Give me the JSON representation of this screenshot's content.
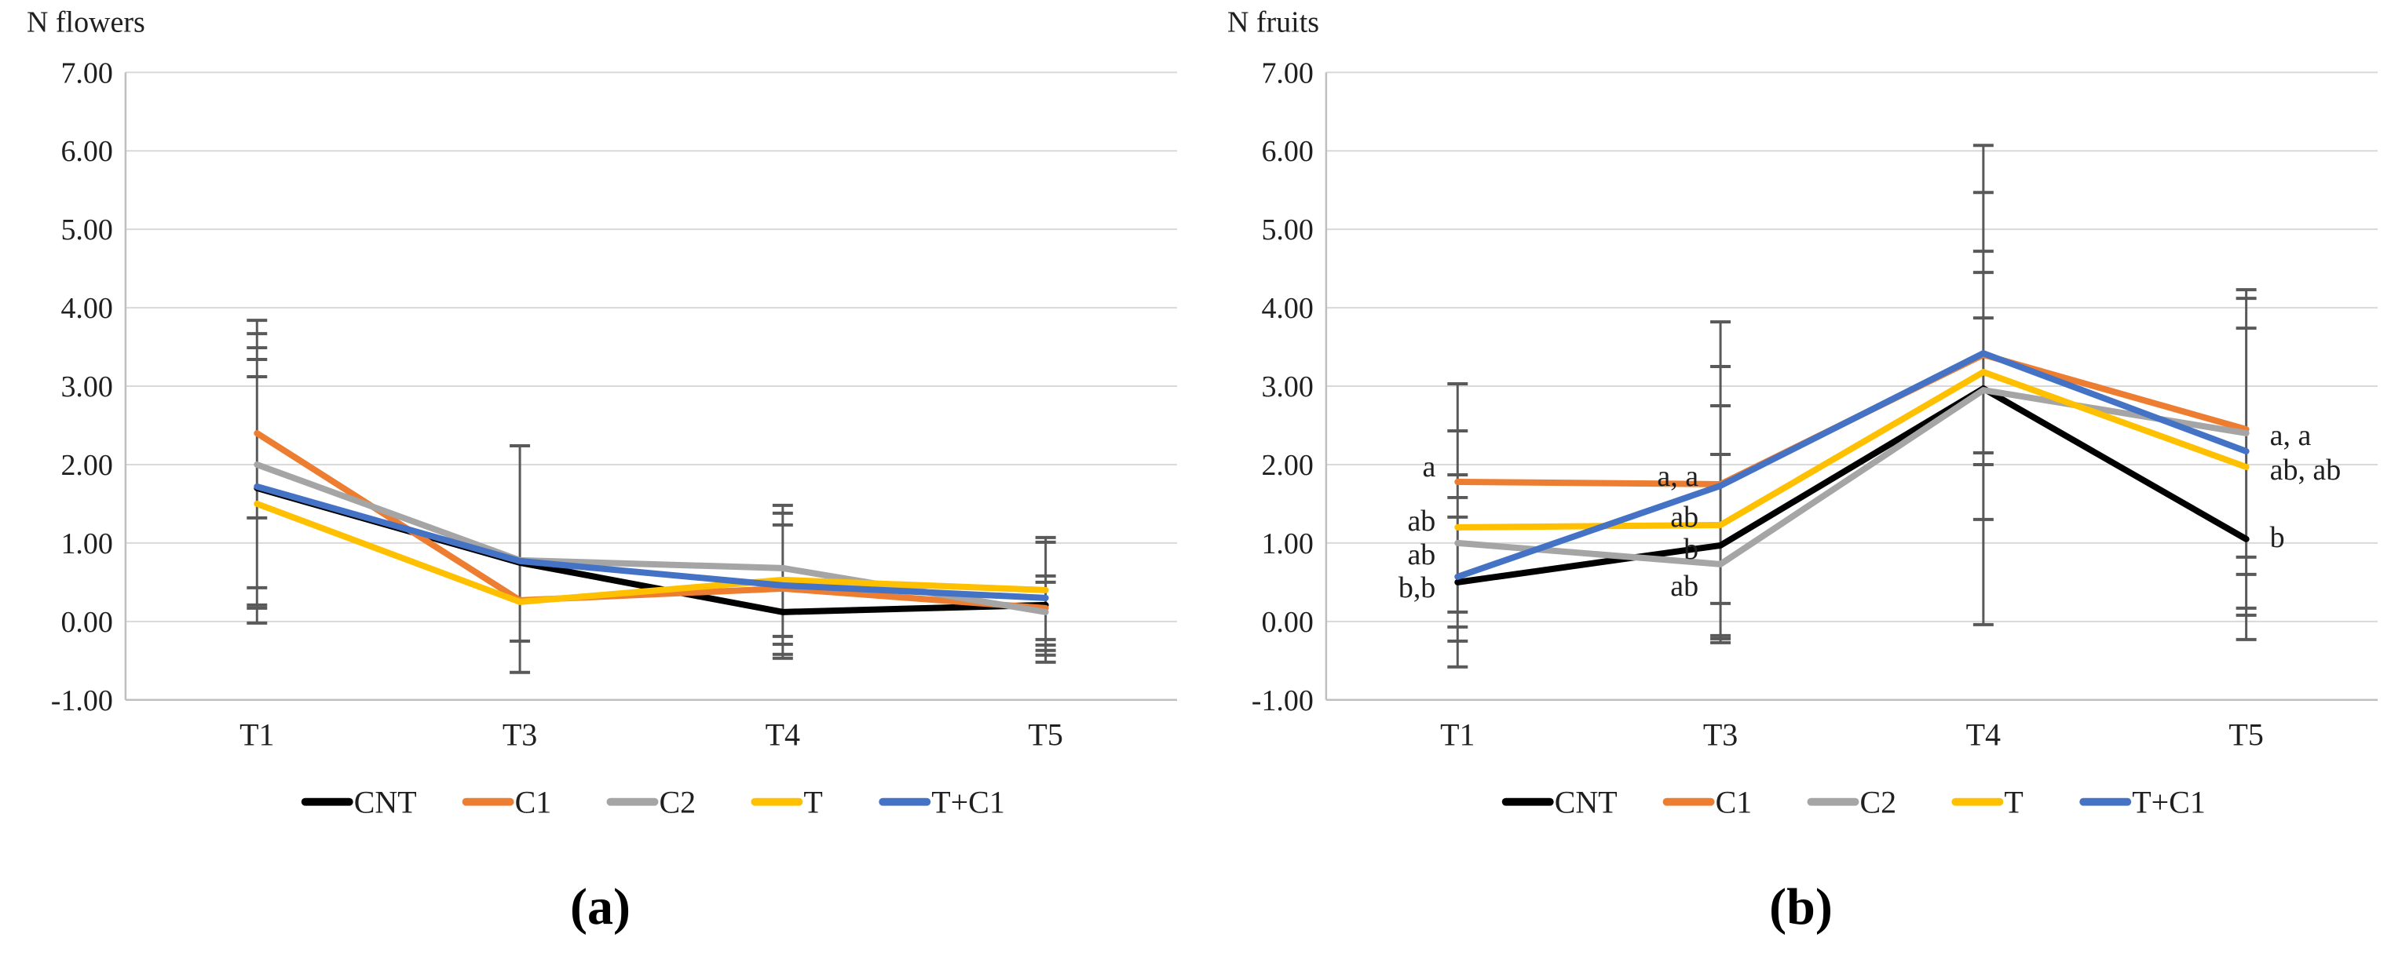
{
  "figure": {
    "panels": [
      {
        "letter": "(a)"
      },
      {
        "letter": "(b)"
      }
    ]
  },
  "palette": {
    "gridline": "#D9D9D9",
    "axis": "#BFBFBF",
    "error_bar": "#595959",
    "text": "#1f1f1f"
  },
  "chart_data": [
    {
      "id": "chart-a",
      "type": "line",
      "title": "N flowers",
      "categories": [
        "T1",
        "T3",
        "T4",
        "T5"
      ],
      "ylim": [
        -1,
        7
      ],
      "ytick_step": 1,
      "ytick_labels": [
        "7.00",
        "6.00",
        "5.00",
        "4.00",
        "3.00",
        "2.00",
        "1.00",
        "0.00",
        "-1.00"
      ],
      "grid": true,
      "legend_position": "bottom",
      "series": [
        {
          "name": "CNT",
          "color": "#000000",
          "values": [
            1.7,
            0.75,
            0.12,
            0.21
          ]
        },
        {
          "name": "C1",
          "color": "#ED7D31",
          "values": [
            2.4,
            0.27,
            0.42,
            0.17
          ]
        },
        {
          "name": "C2",
          "color": "#A5A5A5",
          "values": [
            2.0,
            0.78,
            0.68,
            0.12
          ]
        },
        {
          "name": "T",
          "color": "#FFC000",
          "values": [
            1.5,
            0.25,
            0.53,
            0.4
          ]
        },
        {
          "name": "T+C1",
          "color": "#4472C4",
          "values": [
            1.72,
            0.77,
            0.46,
            0.3
          ]
        }
      ],
      "error_bars": [
        {
          "category": "T1",
          "min": -0.02,
          "max": 3.84,
          "caps": [
            3.84,
            3.67,
            3.49,
            3.34,
            3.12,
            1.32,
            0.43,
            0.21,
            0.17,
            -0.02
          ]
        },
        {
          "category": "T3",
          "min": -0.65,
          "max": 2.24,
          "caps": [
            2.24,
            -0.25,
            -0.65
          ]
        },
        {
          "category": "T4",
          "min": -0.47,
          "max": 1.48,
          "caps": [
            1.48,
            1.38,
            1.23,
            -0.19,
            -0.29,
            -0.42,
            -0.47
          ]
        },
        {
          "category": "T5",
          "min": -0.52,
          "max": 1.07,
          "caps": [
            1.07,
            1.01,
            0.58,
            0.5,
            -0.23,
            -0.3,
            -0.37,
            -0.43,
            -0.52
          ]
        }
      ],
      "annotations": []
    },
    {
      "id": "chart-b",
      "type": "line",
      "title": "N fruits",
      "categories": [
        "T1",
        "T3",
        "T4",
        "T5"
      ],
      "ylim": [
        -1,
        7
      ],
      "ytick_step": 1,
      "ytick_labels": [
        "7.00",
        "6.00",
        "5.00",
        "4.00",
        "3.00",
        "2.00",
        "1.00",
        "0.00",
        "-1.00"
      ],
      "grid": true,
      "legend_position": "bottom",
      "series": [
        {
          "name": "CNT",
          "color": "#000000",
          "values": [
            0.5,
            0.97,
            2.97,
            1.05
          ]
        },
        {
          "name": "C1",
          "color": "#ED7D31",
          "values": [
            1.78,
            1.75,
            3.4,
            2.45
          ]
        },
        {
          "name": "C2",
          "color": "#A5A5A5",
          "values": [
            1.0,
            0.73,
            2.95,
            2.4
          ]
        },
        {
          "name": "T",
          "color": "#FFC000",
          "values": [
            1.2,
            1.23,
            3.18,
            1.97
          ]
        },
        {
          "name": "T+C1",
          "color": "#4472C4",
          "values": [
            0.57,
            1.73,
            3.42,
            2.17
          ]
        }
      ],
      "error_bars": [
        {
          "category": "T1",
          "min": -0.58,
          "max": 3.03,
          "caps": [
            3.03,
            2.43,
            1.87,
            1.58,
            1.33,
            0.12,
            -0.07,
            -0.25,
            -0.58
          ]
        },
        {
          "category": "T3",
          "min": -0.27,
          "max": 3.82,
          "caps": [
            3.82,
            3.25,
            2.75,
            2.13,
            0.23,
            -0.18,
            -0.22,
            -0.27
          ]
        },
        {
          "category": "T4",
          "min": -0.04,
          "max": 6.07,
          "caps": [
            6.07,
            5.47,
            4.72,
            4.45,
            3.87,
            2.15,
            2.0,
            1.3,
            -0.04
          ]
        },
        {
          "category": "T5",
          "min": -0.23,
          "max": 4.23,
          "caps": [
            4.23,
            4.12,
            3.74,
            0.82,
            0.6,
            0.17,
            0.08,
            -0.23
          ]
        }
      ],
      "annotations": [
        {
          "text": "a",
          "category": "T1",
          "value": 1.97,
          "side": "left"
        },
        {
          "text": "ab",
          "category": "T1",
          "value": 1.28,
          "side": "left"
        },
        {
          "text": "ab",
          "category": "T1",
          "value": 0.85,
          "side": "left"
        },
        {
          "text": "b,b",
          "category": "T1",
          "value": 0.43,
          "side": "left"
        },
        {
          "text": "a, a",
          "category": "T3",
          "value": 1.85,
          "side": "left"
        },
        {
          "text": "ab",
          "category": "T3",
          "value": 1.33,
          "side": "left"
        },
        {
          "text": "b",
          "category": "T3",
          "value": 0.92,
          "side": "left"
        },
        {
          "text": "ab",
          "category": "T3",
          "value": 0.45,
          "side": "left"
        },
        {
          "text": "a, a",
          "category": "T5",
          "value": 2.37,
          "side": "right"
        },
        {
          "text": "ab, ab",
          "category": "T5",
          "value": 1.93,
          "side": "right"
        },
        {
          "text": "b",
          "category": "T5",
          "value": 1.07,
          "side": "right"
        }
      ]
    }
  ]
}
